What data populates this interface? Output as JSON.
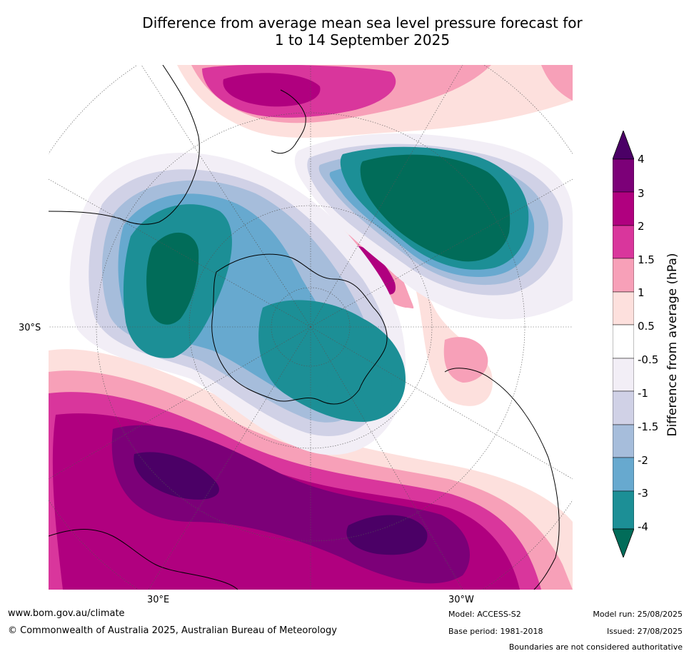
{
  "title_line1": "Difference from average mean sea level pressure forecast for",
  "title_line2": "1 to 14 September 2025",
  "axes": {
    "lat_label": "30°S",
    "lon_label_east": "30°E",
    "lon_label_west": "30°W"
  },
  "colorbar": {
    "title": "Difference from average (hPa)",
    "ticks": [
      "4",
      "3",
      "2",
      "1.5",
      "1",
      "0.5",
      "-0.5",
      "-1",
      "-1.5",
      "-2",
      "-3",
      "-4"
    ],
    "colors": [
      "#4b0066",
      "#7c0078",
      "#b0007f",
      "#d9369c",
      "#f7a0b8",
      "#fde0dd",
      "#ffffff",
      "#f2eef6",
      "#d0d1e6",
      "#a6bddb",
      "#67a9cf",
      "#1c8f96",
      "#016c59"
    ]
  },
  "footer": {
    "website": "www.bom.gov.au/climate",
    "copyright": "© Commonwealth of Australia 2025, Australian Bureau of Meteorology",
    "model": "Model: ACCESS-S2",
    "base_period": "Base period: 1981-2018",
    "model_run": "Model run: 25/08/2025",
    "issued": "Issued: 27/08/2025",
    "disclaimer": "Boundaries are not considered authoritative"
  }
}
